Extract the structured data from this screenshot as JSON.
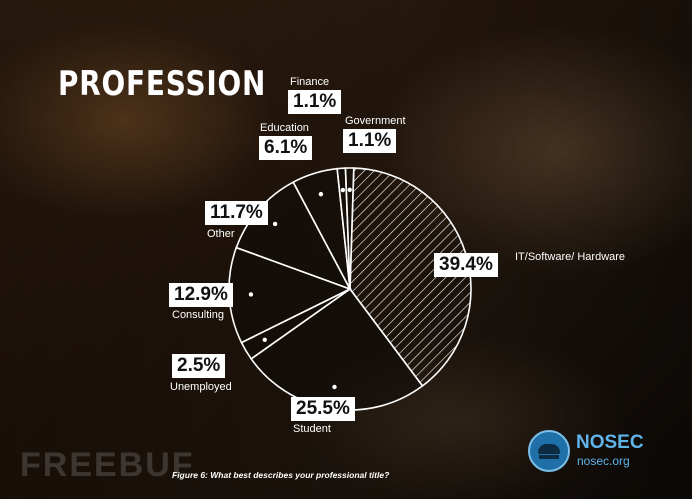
{
  "header": {
    "title": "PROFESSION"
  },
  "chart_data": {
    "type": "pie",
    "title": "PROFESSION",
    "slices": [
      {
        "label": "IT/Software/ Hardware",
        "value": 39.4,
        "display": "39.4%",
        "fill": "hatched"
      },
      {
        "label": "Student",
        "value": 25.5,
        "display": "25.5%",
        "fill": "dark"
      },
      {
        "label": "Unemployed",
        "value": 2.5,
        "display": "2.5%",
        "fill": "dark"
      },
      {
        "label": "Consulting",
        "value": 12.9,
        "display": "12.9%",
        "fill": "dark"
      },
      {
        "label": "Other",
        "value": 11.7,
        "display": "11.7%",
        "fill": "dark"
      },
      {
        "label": "Education",
        "value": 6.1,
        "display": "6.1%",
        "fill": "dark"
      },
      {
        "label": "Finance",
        "value": 1.1,
        "display": "1.1%",
        "fill": "dark"
      },
      {
        "label": "Government",
        "value": 1.1,
        "display": "1.1%",
        "fill": "dark"
      }
    ],
    "caption": "Figure 6: What best describes your professional title?"
  },
  "branding": {
    "name": "NOSEC",
    "url": "nosec.org",
    "watermark": "FREEBUF"
  },
  "colors": {
    "line": "#ffffff",
    "brand": "#5fb4ea"
  }
}
